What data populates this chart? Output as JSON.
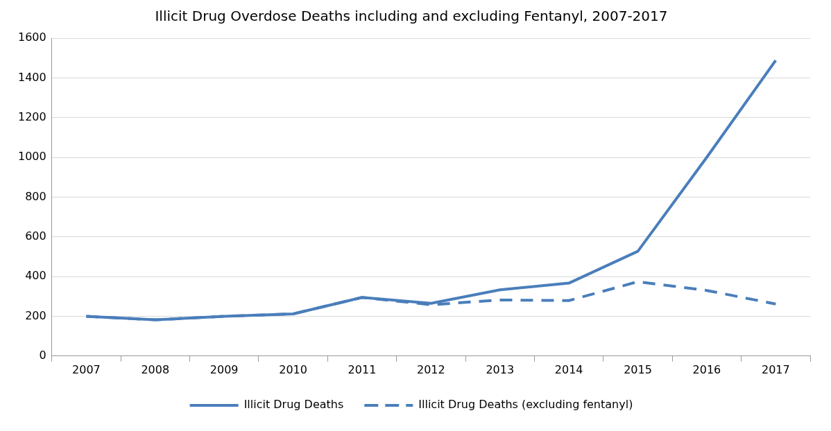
{
  "chart_data": {
    "type": "line",
    "title": "Illicit Drug Overdose Deaths including and excluding Fentanyl, 2007-2017",
    "categories": [
      "2007",
      "2008",
      "2009",
      "2010",
      "2011",
      "2012",
      "2013",
      "2014",
      "2015",
      "2016",
      "2017"
    ],
    "series": [
      {
        "name": "Illicit Drug Deaths",
        "color": "#4a7ebb",
        "values": [
          200,
          182,
          200,
          212,
          295,
          265,
          333,
          367,
          527,
          1000,
          1488
        ],
        "line_style": "solid"
      },
      {
        "name": "Illicit Drug Deaths (excluding fentanyl)",
        "color": "#4a7ebb",
        "values": [
          200,
          182,
          200,
          212,
          295,
          258,
          282,
          279,
          374,
          330,
          262
        ],
        "line_style": "dashed"
      }
    ],
    "ylim": [
      0,
      1600
    ],
    "yticks": [
      0,
      200,
      400,
      600,
      800,
      1000,
      1200,
      1400,
      1600
    ],
    "grid": "y",
    "legend": "bottom",
    "marker": "none"
  }
}
